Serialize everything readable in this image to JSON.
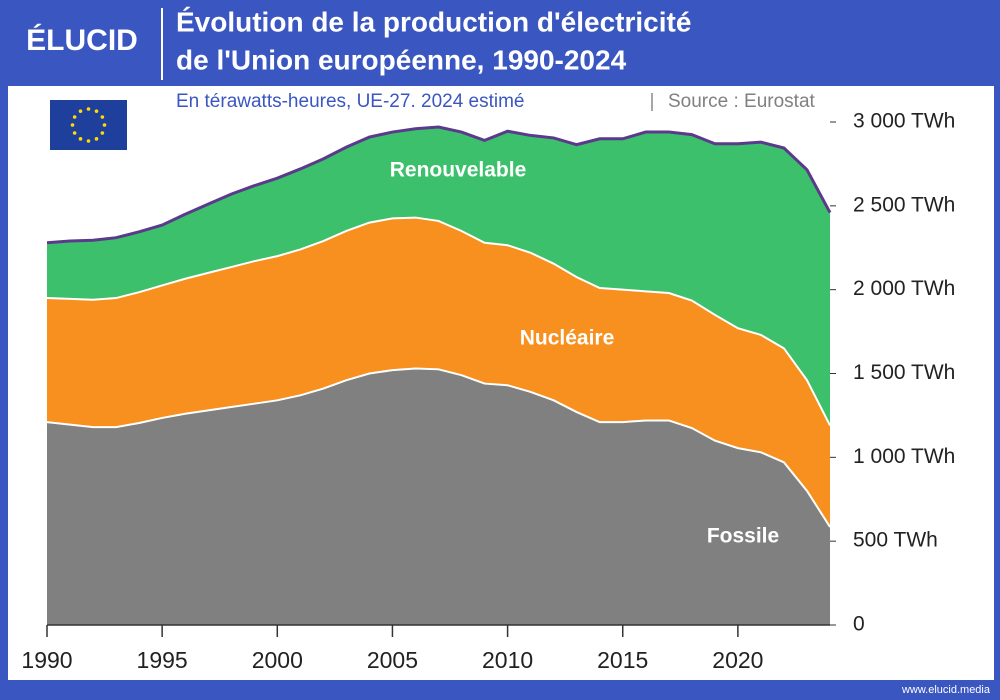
{
  "brand": "ÉLUCID",
  "footer": "www.elucid.media",
  "chart_data": {
    "type": "stacked-area",
    "title": [
      "Évolution de la production d'électricité",
      "de l'Union européenne, 1990-2024"
    ],
    "subtitle": "En térawatts-heures, UE-27. 2024 estimé",
    "source": "Source : Eurostat",
    "x": [
      1990,
      1991,
      1992,
      1993,
      1994,
      1995,
      1996,
      1997,
      1998,
      1999,
      2000,
      2001,
      2002,
      2003,
      2004,
      2005,
      2006,
      2007,
      2008,
      2009,
      2010,
      2011,
      2012,
      2013,
      2014,
      2015,
      2016,
      2017,
      2018,
      2019,
      2020,
      2021,
      2022,
      2023,
      2024
    ],
    "xlim": [
      1990,
      2024
    ],
    "xticks": [
      1990,
      1995,
      2000,
      2005,
      2010,
      2015,
      2020
    ],
    "ylim": [
      0,
      3000
    ],
    "yticks": [
      0,
      {
        "value": 500,
        "label": "500 TWh"
      },
      {
        "value": 1000,
        "label": "1 000 TWh"
      },
      {
        "value": 1500,
        "label": "1 500 TWh"
      },
      {
        "value": 2000,
        "label": "2 000 TWh"
      },
      {
        "value": 2500,
        "label": "2 500 TWh"
      },
      {
        "value": 3000,
        "label": "3 000 TWh"
      }
    ],
    "total_line_color": "#5b3a8c",
    "series": [
      {
        "name": "Fossile",
        "color": "#808080",
        "values": [
          1210,
          1195,
          1180,
          1180,
          1205,
          1235,
          1260,
          1280,
          1300,
          1320,
          1340,
          1370,
          1410,
          1460,
          1500,
          1520,
          1530,
          1525,
          1490,
          1440,
          1430,
          1390,
          1340,
          1270,
          1210,
          1210,
          1220,
          1220,
          1175,
          1100,
          1055,
          1030,
          970,
          800,
          585
        ]
      },
      {
        "name": "Nucléaire",
        "color": "#f7901e",
        "values": [
          740,
          750,
          760,
          770,
          780,
          790,
          805,
          820,
          835,
          850,
          860,
          870,
          880,
          890,
          900,
          905,
          900,
          885,
          860,
          840,
          835,
          830,
          815,
          805,
          800,
          790,
          770,
          760,
          760,
          750,
          715,
          700,
          680,
          660,
          605
        ]
      },
      {
        "name": "Renouvelable",
        "color": "#3cc06b",
        "values": [
          330,
          345,
          355,
          360,
          360,
          360,
          385,
          410,
          435,
          450,
          465,
          480,
          490,
          500,
          510,
          515,
          530,
          560,
          590,
          610,
          680,
          700,
          750,
          790,
          890,
          900,
          950,
          960,
          990,
          1020,
          1100,
          1150,
          1195,
          1255,
          1270
        ]
      }
    ]
  }
}
